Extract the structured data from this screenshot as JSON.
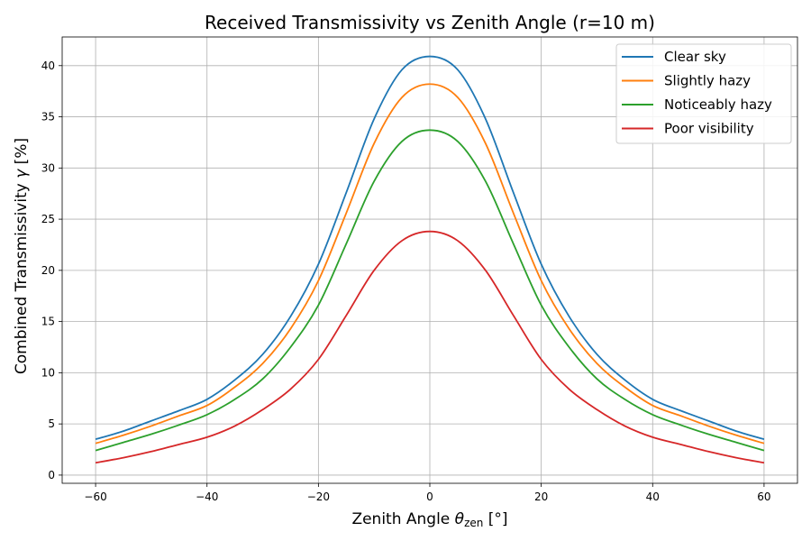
{
  "chart_data": {
    "type": "line",
    "title": "Received Transmissivity vs Zenith Angle (r=10 m)",
    "xlabel": {
      "main": "Zenith Angle ",
      "symbol": "θ",
      "subscript": "zen",
      "unit": " [°]"
    },
    "ylabel": {
      "main": "Combined Transmissivity ",
      "symbol": "γ",
      "unit": " [%]"
    },
    "xlim": [
      -66,
      66
    ],
    "ylim": [
      -0.8,
      42.8
    ],
    "xticks": [
      -60,
      -40,
      -20,
      0,
      20,
      40,
      60
    ],
    "xtick_labels": [
      "−60",
      "−40",
      "−20",
      "0",
      "20",
      "40",
      "60"
    ],
    "yticks": [
      0,
      5,
      10,
      15,
      20,
      25,
      30,
      35,
      40
    ],
    "ytick_labels": [
      "0",
      "5",
      "10",
      "15",
      "20",
      "25",
      "30",
      "35",
      "40"
    ],
    "grid": true,
    "legend_position": "top-right",
    "x": [
      -60,
      -55,
      -50,
      -45,
      -40,
      -35,
      -30,
      -25,
      -20,
      -15,
      -10,
      -5,
      0,
      5,
      10,
      15,
      20,
      25,
      30,
      35,
      40,
      45,
      50,
      55,
      60
    ],
    "series": [
      {
        "name": "Clear sky",
        "color": "#1f77b4",
        "values": [
          3.5,
          4.3,
          5.3,
          6.3,
          7.4,
          9.3,
          11.8,
          15.5,
          20.6,
          27.6,
          34.8,
          39.6,
          40.9,
          39.6,
          34.8,
          27.6,
          20.6,
          15.5,
          11.8,
          9.3,
          7.4,
          6.3,
          5.3,
          4.3,
          3.5
        ]
      },
      {
        "name": "Slightly hazy",
        "color": "#ff7f0e",
        "values": [
          3.1,
          3.9,
          4.8,
          5.8,
          6.8,
          8.6,
          10.9,
          14.3,
          19.0,
          25.6,
          32.4,
          36.9,
          38.2,
          36.9,
          32.4,
          25.6,
          19.0,
          14.3,
          10.9,
          8.6,
          6.8,
          5.8,
          4.8,
          3.9,
          3.1
        ]
      },
      {
        "name": "Noticeably hazy",
        "color": "#2ca02c",
        "values": [
          2.4,
          3.2,
          4.0,
          4.9,
          5.9,
          7.4,
          9.4,
          12.5,
          16.6,
          22.6,
          28.7,
          32.6,
          33.7,
          32.6,
          28.7,
          22.6,
          16.6,
          12.5,
          9.4,
          7.4,
          5.9,
          4.9,
          4.0,
          3.2,
          2.4
        ]
      },
      {
        "name": "Poor visibility",
        "color": "#d62728",
        "values": [
          1.2,
          1.7,
          2.3,
          3.0,
          3.7,
          4.8,
          6.4,
          8.4,
          11.3,
          15.6,
          20.0,
          22.9,
          23.8,
          22.9,
          20.0,
          15.6,
          11.3,
          8.4,
          6.4,
          4.8,
          3.7,
          3.0,
          2.3,
          1.7,
          1.2
        ]
      }
    ]
  }
}
